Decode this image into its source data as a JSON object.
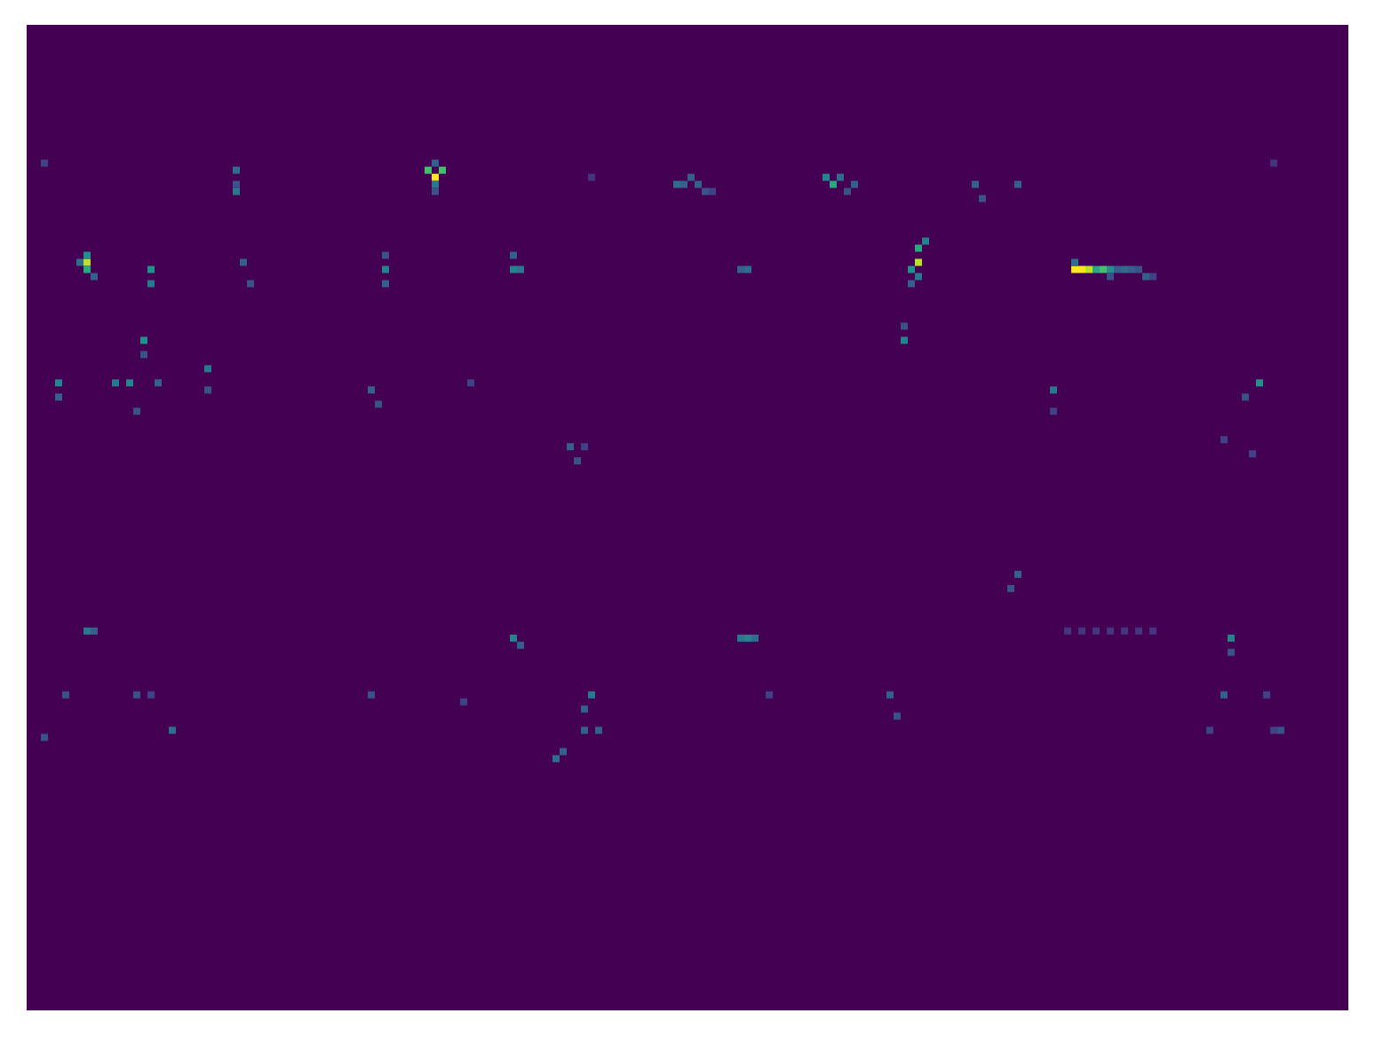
{
  "chart_data": {
    "type": "heatmap",
    "xlim": [
      0,
      186
    ],
    "ylim": [
      0,
      139
    ],
    "zlim": [
      0,
      1
    ],
    "tick_labels": false,
    "grid": false,
    "cells": [
      [
        57,
        21,
        1.0
      ],
      [
        56,
        20,
        0.7
      ],
      [
        58,
        20,
        0.7
      ],
      [
        57,
        22,
        0.4
      ],
      [
        57,
        19,
        0.3
      ],
      [
        57,
        23,
        0.25
      ],
      [
        8,
        33,
        0.9
      ],
      [
        8,
        34,
        0.6
      ],
      [
        8,
        32,
        0.5
      ],
      [
        7,
        33,
        0.35
      ],
      [
        9,
        35,
        0.3
      ],
      [
        125,
        33,
        0.9
      ],
      [
        125,
        31,
        0.6
      ],
      [
        126,
        30,
        0.45
      ],
      [
        124,
        34,
        0.5
      ],
      [
        125,
        35,
        0.4
      ],
      [
        124,
        36,
        0.3
      ],
      [
        123,
        44,
        0.45
      ],
      [
        123,
        42,
        0.25
      ],
      [
        147,
        34,
        1.0
      ],
      [
        148,
        34,
        1.0
      ],
      [
        149,
        34,
        0.9
      ],
      [
        150,
        34,
        0.6
      ],
      [
        151,
        34,
        0.7
      ],
      [
        152,
        34,
        0.5
      ],
      [
        153,
        34,
        0.3
      ],
      [
        154,
        34,
        0.35
      ],
      [
        155,
        34,
        0.3
      ],
      [
        156,
        34,
        0.25
      ],
      [
        157,
        35,
        0.3
      ],
      [
        158,
        35,
        0.2
      ],
      [
        147,
        33,
        0.35
      ],
      [
        152,
        35,
        0.25
      ],
      [
        113,
        22,
        0.6
      ],
      [
        112,
        21,
        0.45
      ],
      [
        114,
        21,
        0.35
      ],
      [
        116,
        22,
        0.3
      ],
      [
        115,
        23,
        0.25
      ],
      [
        91,
        22,
        0.35
      ],
      [
        92,
        22,
        0.3
      ],
      [
        93,
        21,
        0.3
      ],
      [
        94,
        22,
        0.3
      ],
      [
        95,
        23,
        0.25
      ],
      [
        96,
        23,
        0.2
      ],
      [
        29,
        20,
        0.35
      ],
      [
        29,
        23,
        0.4
      ],
      [
        29,
        22,
        0.25
      ],
      [
        17,
        34,
        0.5
      ],
      [
        17,
        36,
        0.4
      ],
      [
        16,
        44,
        0.5
      ],
      [
        16,
        46,
        0.25
      ],
      [
        50,
        34,
        0.45
      ],
      [
        50,
        36,
        0.3
      ],
      [
        50,
        32,
        0.25
      ],
      [
        68,
        34,
        0.45
      ],
      [
        69,
        34,
        0.4
      ],
      [
        68,
        32,
        0.3
      ],
      [
        101,
        34,
        0.35
      ],
      [
        100,
        34,
        0.3
      ],
      [
        133,
        22,
        0.3
      ],
      [
        134,
        24,
        0.25
      ],
      [
        139,
        22,
        0.3
      ],
      [
        30,
        33,
        0.3
      ],
      [
        31,
        36,
        0.25
      ],
      [
        4,
        50,
        0.45
      ],
      [
        4,
        52,
        0.3
      ],
      [
        12,
        50,
        0.4
      ],
      [
        14,
        50,
        0.45
      ],
      [
        18,
        50,
        0.3
      ],
      [
        15,
        54,
        0.25
      ],
      [
        25,
        48,
        0.4
      ],
      [
        25,
        51,
        0.25
      ],
      [
        48,
        51,
        0.3
      ],
      [
        49,
        53,
        0.25
      ],
      [
        62,
        50,
        0.2
      ],
      [
        144,
        51,
        0.4
      ],
      [
        144,
        54,
        0.2
      ],
      [
        173,
        50,
        0.5
      ],
      [
        171,
        52,
        0.25
      ],
      [
        76,
        59,
        0.3
      ],
      [
        77,
        61,
        0.25
      ],
      [
        78,
        59,
        0.2
      ],
      [
        168,
        58,
        0.2
      ],
      [
        172,
        60,
        0.2
      ],
      [
        139,
        77,
        0.3
      ],
      [
        138,
        79,
        0.25
      ],
      [
        8,
        85,
        0.4
      ],
      [
        9,
        85,
        0.3
      ],
      [
        68,
        86,
        0.45
      ],
      [
        69,
        87,
        0.3
      ],
      [
        100,
        86,
        0.4
      ],
      [
        101,
        86,
        0.45
      ],
      [
        102,
        86,
        0.35
      ],
      [
        169,
        86,
        0.45
      ],
      [
        169,
        88,
        0.25
      ],
      [
        146,
        85,
        0.15
      ],
      [
        148,
        85,
        0.15
      ],
      [
        150,
        85,
        0.15
      ],
      [
        152,
        85,
        0.15
      ],
      [
        154,
        85,
        0.15
      ],
      [
        156,
        85,
        0.15
      ],
      [
        158,
        85,
        0.15
      ],
      [
        79,
        94,
        0.4
      ],
      [
        78,
        96,
        0.3
      ],
      [
        80,
        99,
        0.3
      ],
      [
        20,
        99,
        0.35
      ],
      [
        74,
        103,
        0.35
      ],
      [
        75,
        102,
        0.3
      ],
      [
        78,
        99,
        0.3
      ],
      [
        121,
        94,
        0.3
      ],
      [
        122,
        97,
        0.25
      ],
      [
        176,
        99,
        0.25
      ],
      [
        175,
        99,
        0.2
      ],
      [
        5,
        94,
        0.25
      ],
      [
        2,
        100,
        0.25
      ],
      [
        15,
        94,
        0.25
      ],
      [
        17,
        94,
        0.2
      ],
      [
        48,
        94,
        0.25
      ],
      [
        61,
        95,
        0.2
      ],
      [
        104,
        94,
        0.2
      ],
      [
        168,
        94,
        0.3
      ],
      [
        166,
        99,
        0.2
      ],
      [
        174,
        94,
        0.2
      ],
      [
        175,
        19,
        0.15
      ],
      [
        2,
        19,
        0.2
      ],
      [
        79,
        21,
        0.15
      ]
    ]
  }
}
